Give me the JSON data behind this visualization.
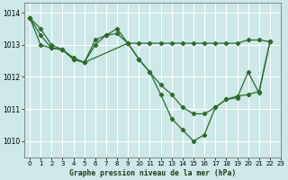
{
  "bg_color": "#cce8e8",
  "plot_bg": "#cce8e8",
  "grid_color": "#ffffff",
  "line_color": "#2d6a2d",
  "title": "Graphe pression niveau de la mer (hPa)",
  "ylim": [
    1009.5,
    1014.3
  ],
  "xlim": [
    -0.5,
    23
  ],
  "yticks": [
    1010,
    1011,
    1012,
    1013,
    1014
  ],
  "xticks": [
    0,
    1,
    2,
    3,
    4,
    5,
    6,
    7,
    8,
    9,
    10,
    11,
    12,
    13,
    14,
    15,
    16,
    17,
    18,
    19,
    20,
    21,
    22,
    23
  ],
  "s1x": [
    0,
    1,
    2,
    3,
    4,
    5,
    6,
    7,
    8,
    9,
    10,
    11,
    12,
    13,
    14,
    15,
    16,
    17,
    18,
    19,
    20,
    21,
    22
  ],
  "s1y": [
    1013.85,
    1013.5,
    1013.0,
    1012.85,
    1012.6,
    1012.45,
    1013.15,
    1013.3,
    1013.5,
    1013.05,
    1012.55,
    1012.15,
    1011.45,
    1010.7,
    1010.35,
    1010.0,
    1010.2,
    1011.05,
    1011.3,
    1011.35,
    1012.15,
    1011.5,
    1013.1
  ],
  "s2x": [
    0,
    1,
    2,
    3,
    4,
    5,
    6,
    7,
    8,
    9,
    10,
    11,
    12,
    13,
    14,
    15,
    16,
    17,
    18,
    19,
    20,
    21,
    22
  ],
  "s2y": [
    1013.85,
    1013.3,
    1012.9,
    1012.85,
    1012.55,
    1012.45,
    1013.0,
    1013.3,
    1013.35,
    1013.05,
    1013.05,
    1013.05,
    1013.05,
    1013.05,
    1013.05,
    1013.05,
    1013.05,
    1013.05,
    1013.05,
    1013.05,
    1013.15,
    1013.15,
    1013.1
  ],
  "s3x": [
    0,
    1,
    2,
    3,
    4,
    5,
    9,
    10,
    11,
    12,
    13,
    14,
    15,
    16,
    17,
    18,
    19,
    20,
    21,
    22
  ],
  "s3y": [
    1013.85,
    1013.0,
    1012.9,
    1012.85,
    1012.55,
    1012.45,
    1013.05,
    1012.55,
    1012.15,
    1011.75,
    1011.45,
    1011.05,
    1010.85,
    1010.85,
    1011.05,
    1011.3,
    1011.4,
    1011.45,
    1011.55,
    1013.1
  ]
}
